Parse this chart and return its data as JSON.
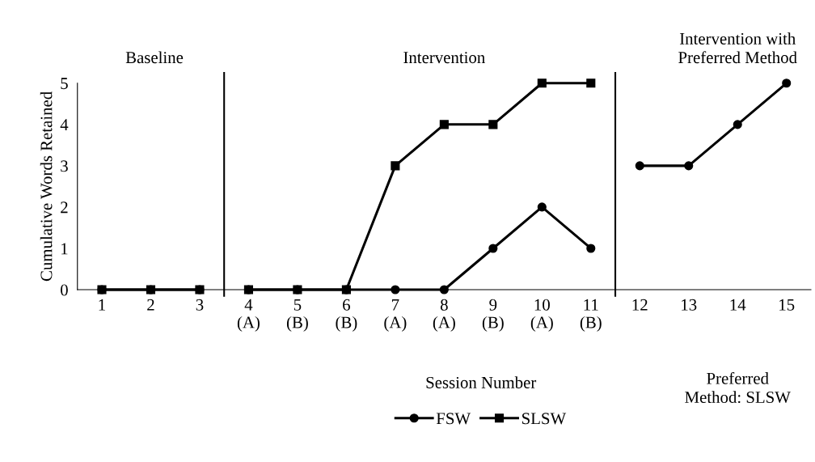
{
  "chart_data": {
    "type": "line",
    "xlabel": "Session Number",
    "ylabel": "Cumulative Words Retained",
    "xlim": [
      0.5,
      15.5
    ],
    "ylim": [
      0,
      5
    ],
    "xticks": [
      1,
      2,
      3,
      {
        "value": 4,
        "label": "4\n(A)"
      },
      {
        "value": 5,
        "label": "5\n(B)"
      },
      {
        "value": 6,
        "label": "6\n(B)"
      },
      {
        "value": 7,
        "label": "7\n(A)"
      },
      {
        "value": 8,
        "label": "8\n(A)"
      },
      {
        "value": 9,
        "label": "9\n(B)"
      },
      {
        "value": 10,
        "label": "10\n(A)"
      },
      {
        "value": 11,
        "label": "11\n(B)"
      },
      12,
      13,
      14,
      15
    ],
    "yticks": [
      0,
      1,
      2,
      3,
      4,
      5
    ],
    "series": [
      {
        "name": "FSW",
        "color": "#000000",
        "marker": "circle",
        "x": [
          1,
          2,
          3
        ],
        "values": [
          0,
          0,
          0
        ]
      },
      {
        "name": "SLSW",
        "color": "#000000",
        "marker": "square",
        "x": [
          1,
          2,
          3
        ],
        "values": [
          0,
          0,
          0
        ]
      },
      {
        "color": "#000000",
        "marker": "circle",
        "x": [
          4,
          5,
          6,
          7,
          8,
          9,
          10,
          11
        ],
        "values": [
          0,
          0,
          0,
          0,
          0,
          1,
          2,
          1
        ]
      },
      {
        "color": "#000000",
        "marker": "square",
        "x": [
          4,
          5,
          6,
          7,
          8,
          9,
          10,
          11
        ],
        "values": [
          0,
          0,
          0,
          3,
          4,
          4,
          5,
          5
        ]
      },
      {
        "color": "#000000",
        "marker": "circle",
        "x": [
          12,
          13,
          14,
          15
        ],
        "values": [
          3,
          3,
          4,
          5
        ]
      }
    ],
    "ref_lines": [
      {
        "axis": "x",
        "value": 3.5,
        "color": "#000000"
      },
      {
        "axis": "x",
        "value": 11.5,
        "color": "#000000"
      }
    ],
    "annotations": [
      "Baseline",
      "Intervention",
      "Intervention with\nPreferred Method",
      "Preferred\nMethod: SLSW"
    ],
    "legend": "bottom",
    "grid": false
  }
}
